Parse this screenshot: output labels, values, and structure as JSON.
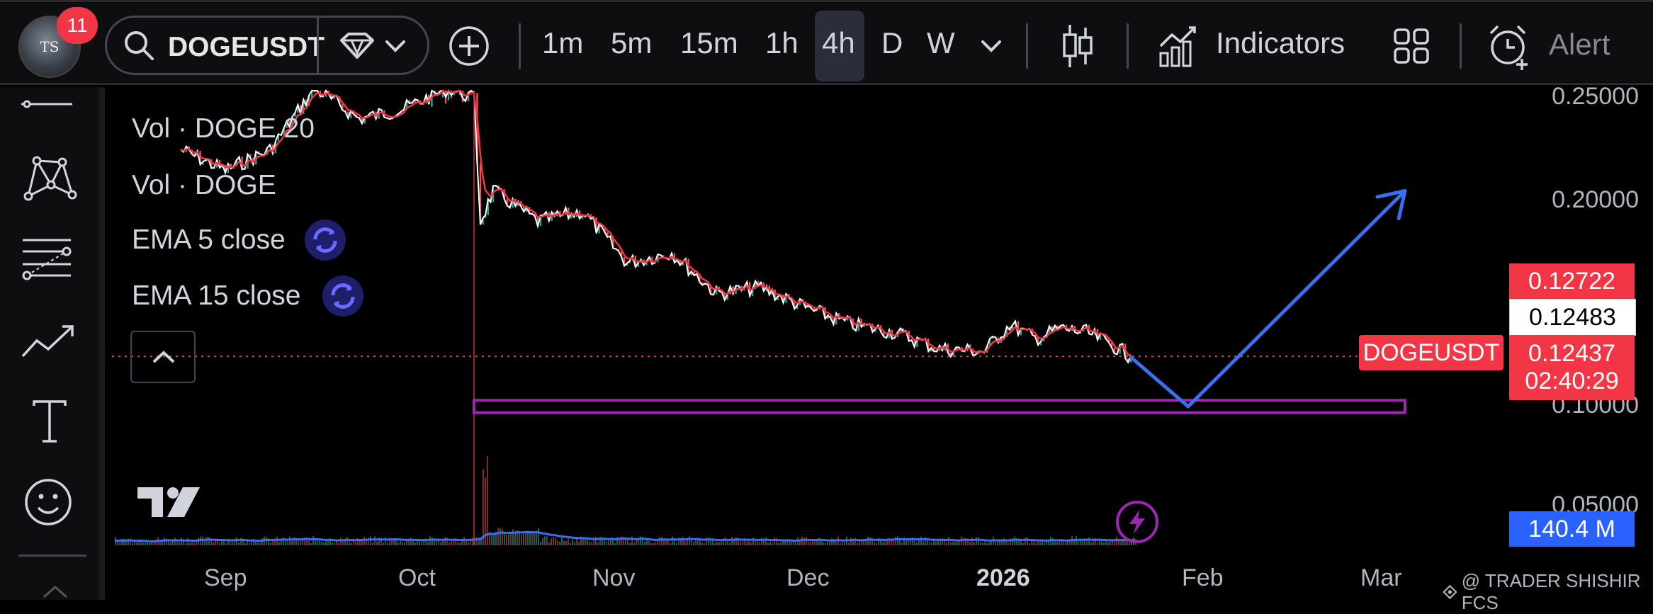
{
  "toolbar": {
    "avatar_initials": "TS",
    "notification_count": "11",
    "symbol": "DOGEUSDT",
    "timeframes": [
      "1m",
      "5m",
      "15m",
      "1h",
      "4h",
      "D",
      "W"
    ],
    "active_timeframe": "4h",
    "indicators_label": "Indicators",
    "alert_label": "Alert"
  },
  "legend": {
    "vol_ma": "Vol · DOGE 20",
    "vol": "Vol · DOGE",
    "ema5": "EMA 5 close",
    "ema15": "EMA 15 close"
  },
  "price_axis": {
    "ticks": [
      "0.25000",
      "0.20000",
      "0.10000",
      "0.05000"
    ],
    "high_label": "0.12722",
    "mid_label": "0.12483",
    "last_label": "0.12437",
    "countdown": "02:40:29",
    "symbol_tag": "DOGEUSDT",
    "volume_label": "140.4 M"
  },
  "time_axis": {
    "labels": [
      "Sep",
      "Oct",
      "Nov",
      "Dec",
      "2026",
      "Feb",
      "Mar"
    ]
  },
  "watermark": "@ TRADER SHISHIR FCS",
  "colors": {
    "background": "#000000",
    "up": "#26a69a",
    "down": "#ef5350",
    "price_line": "#ffffff",
    "ema": "#f23645",
    "projection": "#2962ff",
    "zone": "#9c27b0",
    "last_price": "#f23645",
    "volume_tag": "#2962ff"
  },
  "chart_data": {
    "type": "line",
    "symbol": "DOGEUSDT",
    "interval": "4h",
    "x": [
      "2025-08-25",
      "2025-09-01",
      "2025-09-08",
      "2025-09-15",
      "2025-09-22",
      "2025-09-29",
      "2025-10-06",
      "2025-10-10",
      "2025-10-11",
      "2025-10-13",
      "2025-10-20",
      "2025-10-27",
      "2025-11-03",
      "2025-11-10",
      "2025-11-17",
      "2025-11-24",
      "2025-12-01",
      "2025-12-08",
      "2025-12-15",
      "2025-12-22",
      "2025-12-29",
      "2026-01-02",
      "2026-01-06",
      "2026-01-10",
      "2026-01-14",
      "2026-01-18",
      "2026-01-21"
    ],
    "series": [
      {
        "values": [
          0.225,
          0.215,
          0.225,
          0.255,
          0.24,
          0.245,
          0.255,
          0.25,
          0.19,
          0.205,
          0.19,
          0.195,
          0.17,
          0.175,
          0.155,
          0.158,
          0.148,
          0.14,
          0.136,
          0.128,
          0.127,
          0.14,
          0.133,
          0.138,
          0.136,
          0.13,
          0.1244
        ]
      }
    ],
    "annotations": [
      {
        "type": "rectangle",
        "label": "support zone",
        "y": [
          0.097,
          0.103
        ],
        "x": [
          "2025-10-10",
          "2026-03-05"
        ]
      },
      {
        "type": "path",
        "label": "projection",
        "points": [
          [
            "2026-01-21",
            0.124
          ],
          [
            "2026-01-30",
            0.1
          ],
          [
            "2026-03-05",
            0.205
          ]
        ]
      }
    ],
    "ylim": [
      0.04,
      0.26
    ],
    "grid": false
  }
}
